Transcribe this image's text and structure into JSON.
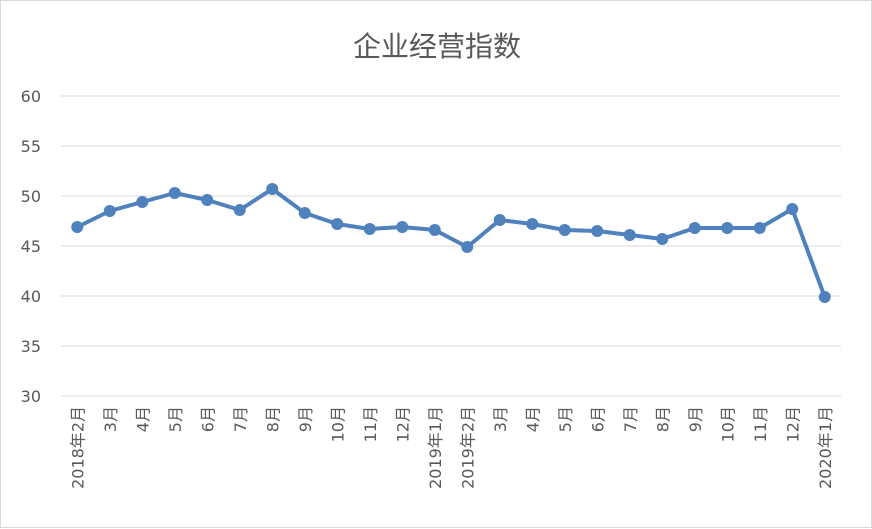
{
  "chart_data": {
    "type": "line",
    "title": "企业经营指数",
    "xlabel": "",
    "ylabel": "",
    "ylim": [
      30,
      60
    ],
    "yticks": [
      30,
      35,
      40,
      45,
      50,
      55,
      60
    ],
    "grid": true,
    "categories": [
      "2018年2月",
      "3月",
      "4月",
      "5月",
      "6月",
      "7月",
      "8月",
      "9月",
      "10月",
      "11月",
      "12月",
      "2019年1月",
      "2019年2月",
      "3月",
      "4月",
      "5月",
      "6月",
      "7月",
      "8月",
      "9月",
      "10月",
      "11月",
      "12月",
      "2020年1月"
    ],
    "series": [
      {
        "name": "企业经营指数",
        "color": "#4f81bd",
        "values": [
          46.9,
          48.5,
          49.4,
          50.3,
          49.6,
          48.6,
          50.7,
          48.3,
          47.2,
          46.7,
          46.9,
          46.6,
          44.9,
          47.6,
          47.2,
          46.6,
          46.5,
          46.1,
          45.7,
          46.8,
          46.8,
          46.8,
          48.7,
          39.9
        ]
      }
    ]
  }
}
